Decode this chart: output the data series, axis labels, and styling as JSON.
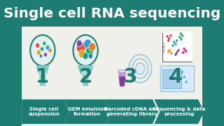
{
  "title": "Single cell RNA sequencing",
  "title_color": "#FFFFFF",
  "title_fontsize": 14.5,
  "title_fontweight": "bold",
  "bg_color": "#1e7d72",
  "panel_bg": "#f0f0eb",
  "arrow_color": "#1e7d72",
  "arrow_text_color": "#FFFFFF",
  "arrow_fontsize": 5.0,
  "steps": [
    {
      "number": "1",
      "label": "Single cell\nsuspension"
    },
    {
      "number": "2",
      "label": "GEM emulsion\nformation"
    },
    {
      "number": "3",
      "label": "Barcoded cDNA and\ngenerating library"
    },
    {
      "number": "4",
      "label": "Sequencing & data\nprocessing"
    }
  ],
  "number_color": "#1e7d72",
  "number_fontsize": 20,
  "number_fontweight": "bold",
  "dot_colors_1": [
    "#e74c3c",
    "#27ae60",
    "#3498db",
    "#f39c12",
    "#8e44ad",
    "#16a085",
    "#e67e22",
    "#2980b9"
  ],
  "gem_colors": [
    "#e74c3c",
    "#3498db",
    "#f39c12",
    "#27ae60",
    "#8e44ad",
    "#e67e22",
    "#16a085",
    "#2980b9"
  ],
  "scatter_colors": [
    "#e74c3c",
    "#e74c3c",
    "#3498db",
    "#3498db",
    "#27ae60",
    "#27ae60",
    "#f39c12",
    "#8e44ad",
    "#8e44ad",
    "#e67e22",
    "#16a085"
  ]
}
